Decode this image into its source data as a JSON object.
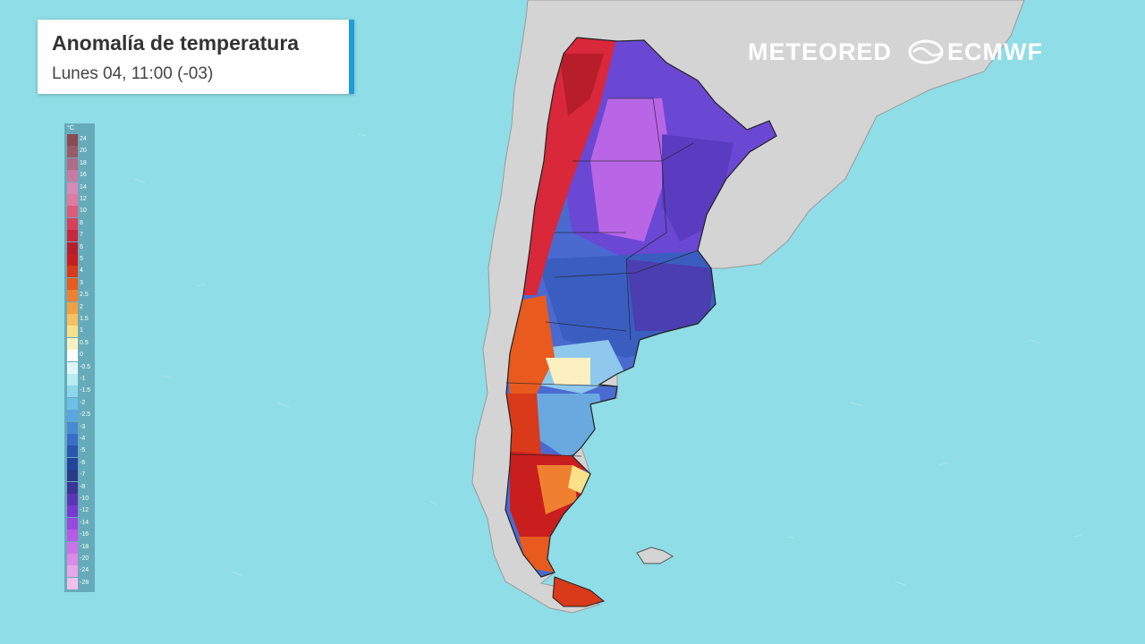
{
  "title": "Anomalía de temperatura",
  "subtitle": "Lunes 04, 11:00 (-03)",
  "logos": {
    "meteored": "METEORED",
    "ecmwf": "ECMWF"
  },
  "legend": {
    "unit": "°C",
    "entries": [
      {
        "label": "24",
        "color": "#8a4a50"
      },
      {
        "label": "20",
        "color": "#9a5a66"
      },
      {
        "label": "18",
        "color": "#b26a86"
      },
      {
        "label": "16",
        "color": "#c87aa2"
      },
      {
        "label": "14",
        "color": "#d88ab6"
      },
      {
        "label": "12",
        "color": "#e07aa0"
      },
      {
        "label": "10",
        "color": "#e05a7a"
      },
      {
        "label": "8",
        "color": "#d8405a"
      },
      {
        "label": "7",
        "color": "#c8283e"
      },
      {
        "label": "6",
        "color": "#b81e2a"
      },
      {
        "label": "5",
        "color": "#c81e1e"
      },
      {
        "label": "4",
        "color": "#d83a1a"
      },
      {
        "label": "3",
        "color": "#e85a1e"
      },
      {
        "label": "2.5",
        "color": "#f08030"
      },
      {
        "label": "2",
        "color": "#f4a040"
      },
      {
        "label": "1.5",
        "color": "#f8c060"
      },
      {
        "label": "1",
        "color": "#fbe08a"
      },
      {
        "label": "0.5",
        "color": "#fdf0c0"
      },
      {
        "label": "0",
        "color": "#ffffff"
      },
      {
        "label": "-0.5",
        "color": "#e0f6f6"
      },
      {
        "label": "-1",
        "color": "#b8ecf0"
      },
      {
        "label": "-1.5",
        "color": "#8ad8ea"
      },
      {
        "label": "-2",
        "color": "#6ac0e6"
      },
      {
        "label": "-2.5",
        "color": "#5aa6e0"
      },
      {
        "label": "-3",
        "color": "#4a8ad4"
      },
      {
        "label": "-4",
        "color": "#3a6ec6"
      },
      {
        "label": "-5",
        "color": "#2a56b0"
      },
      {
        "label": "-6",
        "color": "#22449a"
      },
      {
        "label": "-7",
        "color": "#2a3a8a"
      },
      {
        "label": "-8",
        "color": "#3a3496"
      },
      {
        "label": "-10",
        "color": "#5a36b4"
      },
      {
        "label": "-12",
        "color": "#7a3ad0"
      },
      {
        "label": "-14",
        "color": "#9a48e0"
      },
      {
        "label": "-16",
        "color": "#b85ae6"
      },
      {
        "label": "-18",
        "color": "#cc72e8"
      },
      {
        "label": "-20",
        "color": "#dc8ae6"
      },
      {
        "label": "-24",
        "color": "#e8a6e6"
      },
      {
        "label": "-28",
        "color": "#f2c0e8"
      }
    ]
  }
}
